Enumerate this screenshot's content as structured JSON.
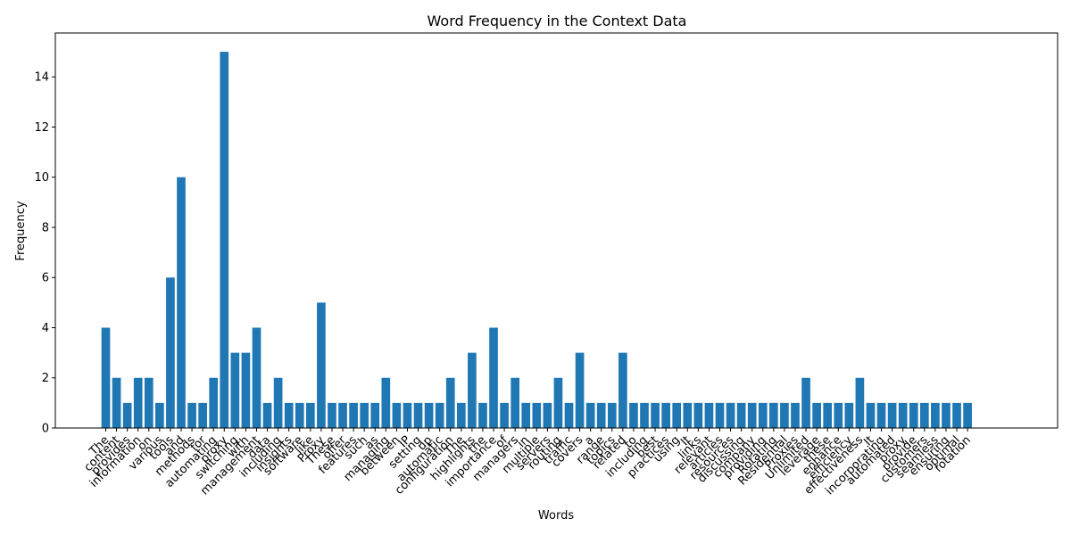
{
  "chart_data": {
    "type": "bar",
    "title": "Word Frequency in the Context Data",
    "xlabel": "Words",
    "ylabel": "Frequency",
    "ylim": [
      0,
      15.75
    ],
    "yticks": [
      0,
      2,
      4,
      6,
      8,
      10,
      12,
      14
    ],
    "bar_color": "#1f77b4",
    "grid": false,
    "categories": [
      "The",
      "content",
      "provides",
      "information",
      "on",
      "various",
      "tools",
      "and",
      "methods",
      "for",
      "automating",
      "proxy",
      "switching",
      "with",
      "management",
      "data",
      "including",
      "insights",
      "software",
      "like",
      "Proxy",
      "These",
      "offer",
      "features",
      "such",
      "as",
      "managing",
      "between",
      "IP",
      "setting",
      "up",
      "automatic",
      "configuration",
      "The",
      "highlights",
      "the",
      "importance",
      "of",
      "managers",
      "in",
      "multiple",
      "servers",
      "routing",
      "traffic",
      "covers",
      "a",
      "range",
      "topics",
      "related",
      "to",
      "including",
      "best",
      "practices",
      "using",
      "It",
      "links",
      "relevant",
      "articles",
      "resources",
      "discussing",
      "company",
      "providing",
      "Rotating",
      "Residential",
      "Proxies",
      "Unlimited",
      "leverage",
      "these",
      "enhance",
      "efficiency",
      "effectiveness",
      "It",
      "incorporating",
      "automated",
      "proxy",
      "provide",
      "customers",
      "seamless",
      "ensuring",
      "optimal",
      "rotation"
    ],
    "values": [
      4,
      2,
      1,
      2,
      2,
      1,
      6,
      10,
      1,
      1,
      2,
      15,
      3,
      3,
      4,
      1,
      2,
      1,
      1,
      1,
      5,
      1,
      1,
      1,
      1,
      1,
      2,
      1,
      1,
      1,
      1,
      1,
      2,
      1,
      3,
      1,
      4,
      1,
      2,
      1,
      1,
      1,
      2,
      1,
      3,
      1,
      1,
      1,
      3,
      1,
      1,
      1,
      1,
      1,
      1,
      1,
      1,
      1,
      1,
      1,
      1,
      1,
      1,
      1,
      1,
      2,
      1,
      1,
      1,
      1,
      2,
      1,
      1,
      1,
      1,
      1,
      1,
      1,
      1,
      1,
      1
    ]
  }
}
